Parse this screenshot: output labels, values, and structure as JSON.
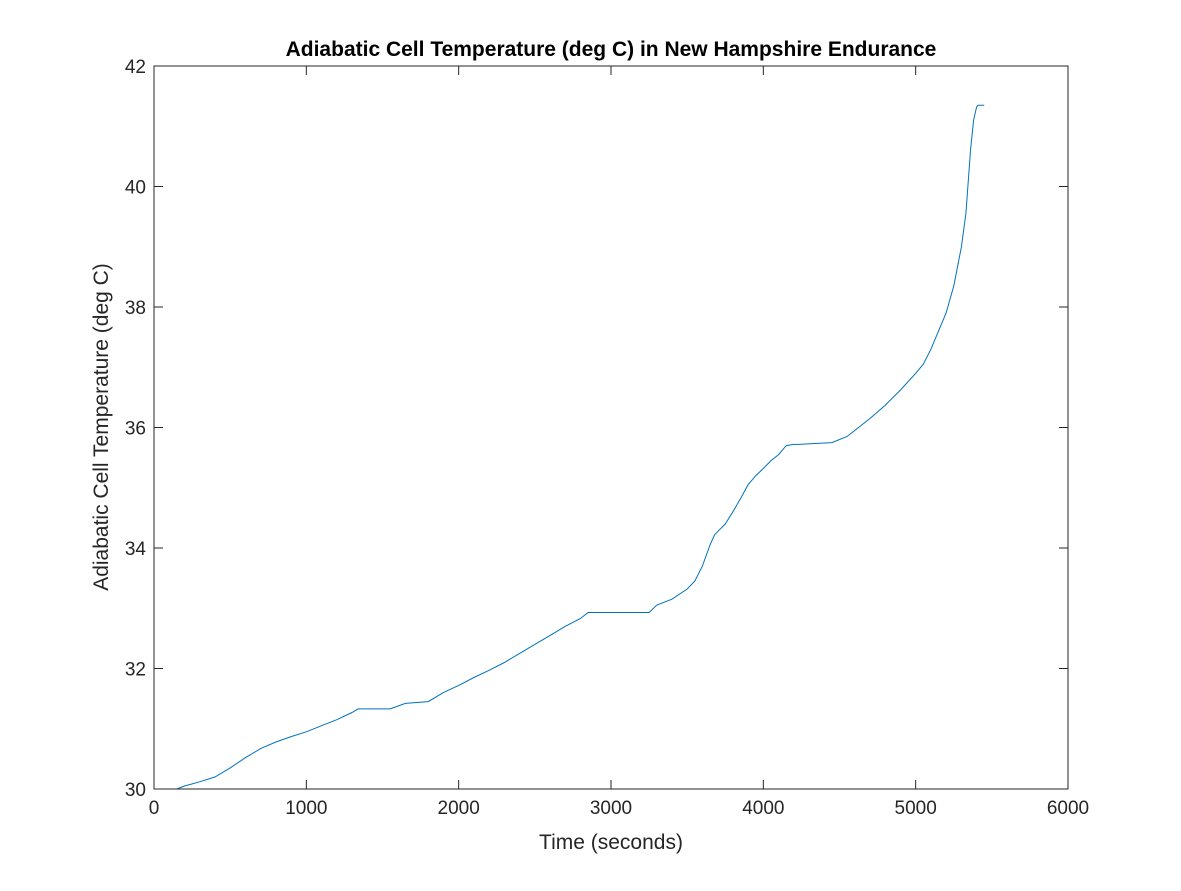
{
  "chart_data": {
    "type": "line",
    "title": "Adiabatic Cell Temperature (deg C) in New Hampshire Endurance",
    "xlabel": "Time (seconds)",
    "ylabel": "Adiabatic Cell Temperature (deg C)",
    "xlim": [
      0,
      6000
    ],
    "ylim": [
      30,
      42
    ],
    "xticks": [
      "0",
      "1000",
      "2000",
      "3000",
      "4000",
      "5000",
      "6000"
    ],
    "yticks": [
      "30",
      "32",
      "34",
      "36",
      "38",
      "40",
      "42"
    ],
    "grid": false,
    "legend": "none",
    "colors": {
      "line": "#0072BD",
      "axes": "#262626",
      "background": "#ffffff"
    },
    "series": [
      {
        "x": [
          0,
          150,
          200,
          300,
          400,
          500,
          600,
          700,
          800,
          900,
          1000,
          1100,
          1200,
          1300,
          1340,
          1550,
          1650,
          1800,
          1900,
          2000,
          2100,
          2200,
          2300,
          2400,
          2500,
          2600,
          2700,
          2800,
          2850,
          3250,
          3300,
          3400,
          3500,
          3550,
          3600,
          3650,
          3680,
          3700,
          3750,
          3800,
          3850,
          3900,
          3950,
          4000,
          4050,
          4100,
          4150,
          4200,
          4230,
          4450,
          4550,
          4600,
          4700,
          4800,
          4900,
          5000,
          5050,
          5100,
          5150,
          5200,
          5250,
          5300,
          5330,
          5360,
          5380,
          5400,
          5410,
          5450
        ],
        "y": [
          30.0,
          30.0,
          30.05,
          30.12,
          30.2,
          30.35,
          30.52,
          30.67,
          30.78,
          30.87,
          30.95,
          31.05,
          31.15,
          31.27,
          31.33,
          31.33,
          31.42,
          31.45,
          31.6,
          31.72,
          31.85,
          31.97,
          32.1,
          32.25,
          32.4,
          32.55,
          32.7,
          32.83,
          32.93,
          32.93,
          33.05,
          33.15,
          33.32,
          33.45,
          33.7,
          34.05,
          34.22,
          34.27,
          34.4,
          34.6,
          34.82,
          35.05,
          35.2,
          35.32,
          35.45,
          35.55,
          35.7,
          35.72,
          35.72,
          35.75,
          35.85,
          35.95,
          36.15,
          36.37,
          36.62,
          36.9,
          37.05,
          37.3,
          37.6,
          37.9,
          38.35,
          39.0,
          39.55,
          40.6,
          41.1,
          41.32,
          41.35,
          41.35
        ]
      }
    ]
  }
}
